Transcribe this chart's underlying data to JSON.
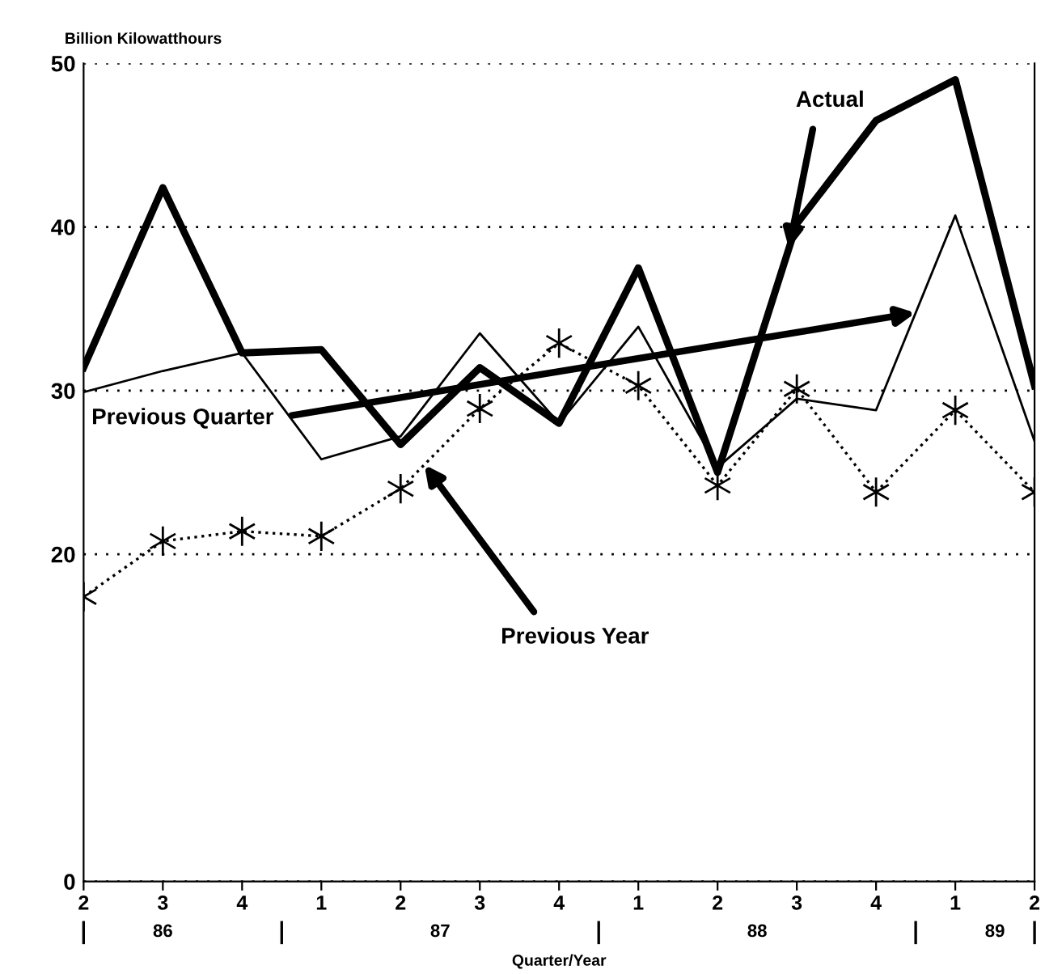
{
  "chart_data": {
    "type": "line",
    "ylabel": "Billion Kilowatthours",
    "xlabel": "Quarter/Year",
    "categories": [
      "2",
      "3",
      "4",
      "1",
      "2",
      "3",
      "4",
      "1",
      "2",
      "3",
      "4",
      "1",
      "2"
    ],
    "series": [
      {
        "name": "Actual",
        "color": "#000000",
        "line_style": "solid",
        "marker": "none",
        "values": [
          31.4,
          42.4,
          32.3,
          32.5,
          26.7,
          31.4,
          28.0,
          37.5,
          25.0,
          40.2,
          46.5,
          49.0,
          30.3
        ]
      },
      {
        "name": "Previous Quarter",
        "color": "#000000",
        "line_style": "solid",
        "marker": "none",
        "values": [
          29.9,
          31.2,
          32.3,
          25.8,
          27.2,
          33.5,
          28.0,
          33.9,
          25.3,
          29.5,
          28.8,
          40.7,
          26.9
        ]
      },
      {
        "name": "Previous Year",
        "color": "#000000",
        "line_style": "dotted",
        "marker": "cross",
        "values": [
          17.4,
          20.8,
          21.4,
          21.1,
          24.0,
          28.9,
          32.9,
          30.3,
          24.2,
          30.1,
          23.8,
          28.8,
          23.8
        ]
      }
    ],
    "annotations": [
      "86",
      "87",
      "88",
      "89"
    ],
    "ylim": [
      0,
      50
    ],
    "yticks": [
      0,
      20,
      30,
      40,
      50
    ],
    "grid": "y",
    "legend": false
  }
}
